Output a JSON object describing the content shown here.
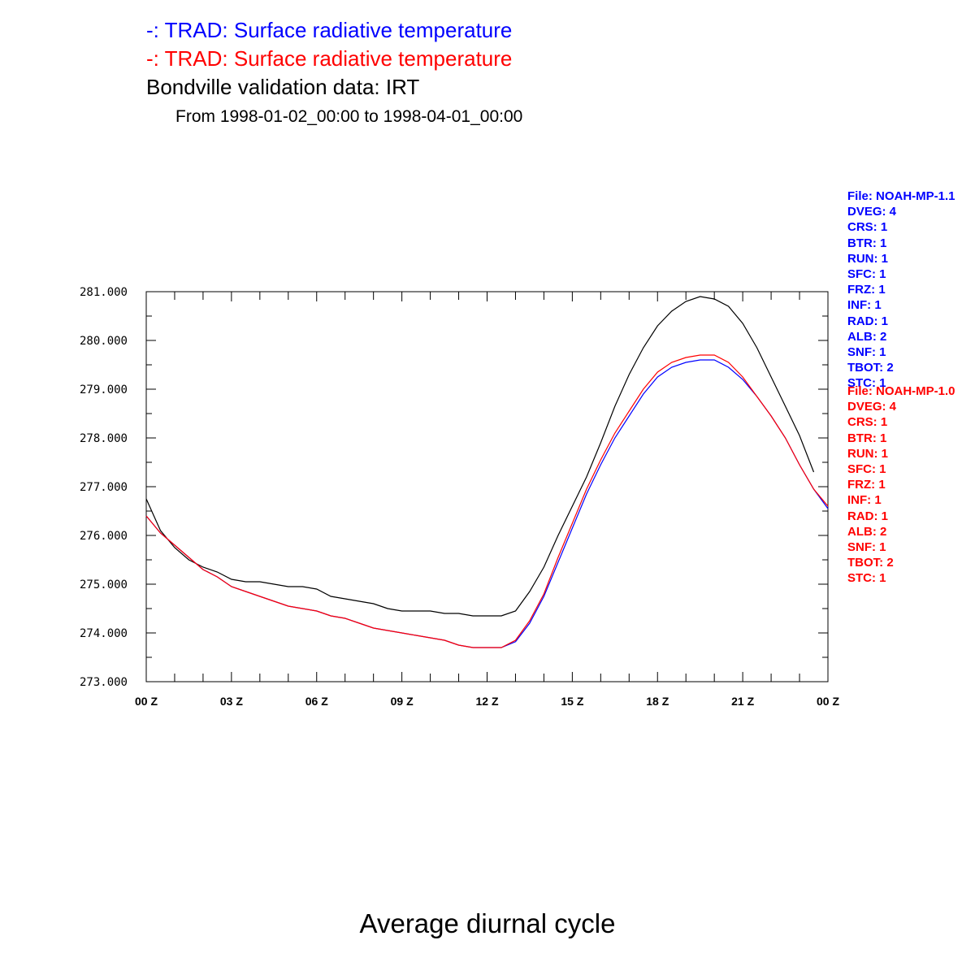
{
  "header": {
    "line1": "-: TRAD: Surface radiative temperature",
    "line2": "-: TRAD: Surface radiative temperature",
    "line3": "Bondville validation data: IRT",
    "line4": "From 1998-01-02_00:00 to 1998-04-01_00:00"
  },
  "footer": {
    "title": "Average diurnal cycle"
  },
  "colors": {
    "series_blue": "#0000ff",
    "series_red": "#ff0000",
    "observed": "#000000"
  },
  "legend_blocks": [
    {
      "color": "#0000ff",
      "lines": [
        "File: NOAH-MP-1.1",
        "DVEG: 4",
        "CRS: 1",
        "BTR: 1",
        "RUN: 1",
        "SFC: 1",
        "FRZ: 1",
        "INF: 1",
        "RAD: 1",
        "ALB: 2",
        "SNF: 1",
        "TBOT: 2",
        "STC: 1"
      ]
    },
    {
      "color": "#ff0000",
      "lines": [
        "File: NOAH-MP-1.0",
        "DVEG: 4",
        "CRS: 1",
        "BTR: 1",
        "RUN: 1",
        "SFC: 1",
        "FRZ: 1",
        "INF: 1",
        "RAD: 1",
        "ALB: 2",
        "SNF: 1",
        "TBOT: 2",
        "STC: 1"
      ]
    }
  ],
  "chart_data": {
    "type": "line",
    "title": "",
    "xlabel": "",
    "ylabel": "",
    "xlim": [
      0,
      24
    ],
    "ylim": [
      273.0,
      281.0
    ],
    "x_ticks": [
      0,
      3,
      6,
      9,
      12,
      15,
      18,
      21,
      24
    ],
    "x_tick_labels": [
      "00 Z",
      "03 Z",
      "06 Z",
      "09 Z",
      "12 Z",
      "15 Z",
      "18 Z",
      "21 Z",
      "00 Z"
    ],
    "y_ticks": [
      273,
      274,
      275,
      276,
      277,
      278,
      279,
      280,
      281
    ],
    "y_tick_labels": [
      "273.000",
      "274.000",
      "275.000",
      "276.000",
      "277.000",
      "278.000",
      "279.000",
      "280.000",
      "281.000"
    ],
    "grid": false,
    "x": [
      0,
      0.5,
      1,
      1.5,
      2,
      2.5,
      3,
      3.5,
      4,
      4.5,
      5,
      5.5,
      6,
      6.5,
      7,
      7.5,
      8,
      8.5,
      9,
      9.5,
      10,
      10.5,
      11,
      11.5,
      12,
      12.5,
      13,
      13.5,
      14,
      14.5,
      15,
      15.5,
      16,
      16.5,
      17,
      17.5,
      18,
      18.5,
      19,
      19.5,
      20,
      20.5,
      21,
      21.5,
      22,
      22.5,
      23,
      23.5,
      24
    ],
    "series": [
      {
        "color": "#0000ff",
        "values": [
          276.4,
          276.05,
          275.8,
          275.55,
          275.3,
          275.15,
          274.95,
          274.85,
          274.75,
          274.65,
          274.55,
          274.5,
          274.45,
          274.35,
          274.3,
          274.2,
          274.1,
          274.05,
          274.0,
          273.95,
          273.9,
          273.85,
          273.75,
          273.7,
          273.7,
          273.7,
          273.82,
          274.2,
          274.75,
          275.45,
          276.15,
          276.85,
          277.45,
          278.0,
          278.45,
          278.9,
          279.25,
          279.45,
          279.55,
          279.6,
          279.6,
          279.45,
          279.2,
          278.85,
          278.45,
          278.0,
          277.45,
          276.95,
          276.55
        ]
      },
      {
        "color": "#ff0000",
        "values": [
          276.4,
          276.05,
          275.8,
          275.55,
          275.3,
          275.15,
          274.95,
          274.85,
          274.75,
          274.65,
          274.55,
          274.5,
          274.45,
          274.35,
          274.3,
          274.2,
          274.1,
          274.05,
          274.0,
          273.95,
          273.9,
          273.85,
          273.75,
          273.7,
          273.7,
          273.7,
          273.85,
          274.25,
          274.8,
          275.55,
          276.25,
          276.95,
          277.55,
          278.1,
          278.55,
          279.0,
          279.35,
          279.55,
          279.65,
          279.7,
          279.7,
          279.55,
          279.25,
          278.85,
          278.45,
          278.0,
          277.45,
          276.95,
          276.6
        ]
      },
      {
        "color": "#000000",
        "values": [
          276.75,
          276.1,
          275.75,
          275.5,
          275.35,
          275.25,
          275.1,
          275.05,
          275.05,
          275.0,
          274.95,
          274.95,
          274.9,
          274.75,
          274.7,
          274.65,
          274.6,
          274.5,
          274.45,
          274.45,
          274.45,
          274.4,
          274.4,
          274.35,
          274.35,
          274.35,
          274.45,
          274.85,
          275.35,
          276.0,
          276.6,
          277.2,
          277.9,
          278.65,
          279.3,
          279.85,
          280.3,
          280.6,
          280.8,
          280.9,
          280.85,
          280.7,
          280.35,
          279.85,
          279.25,
          278.65,
          278.05,
          277.3,
          null
        ]
      }
    ]
  }
}
